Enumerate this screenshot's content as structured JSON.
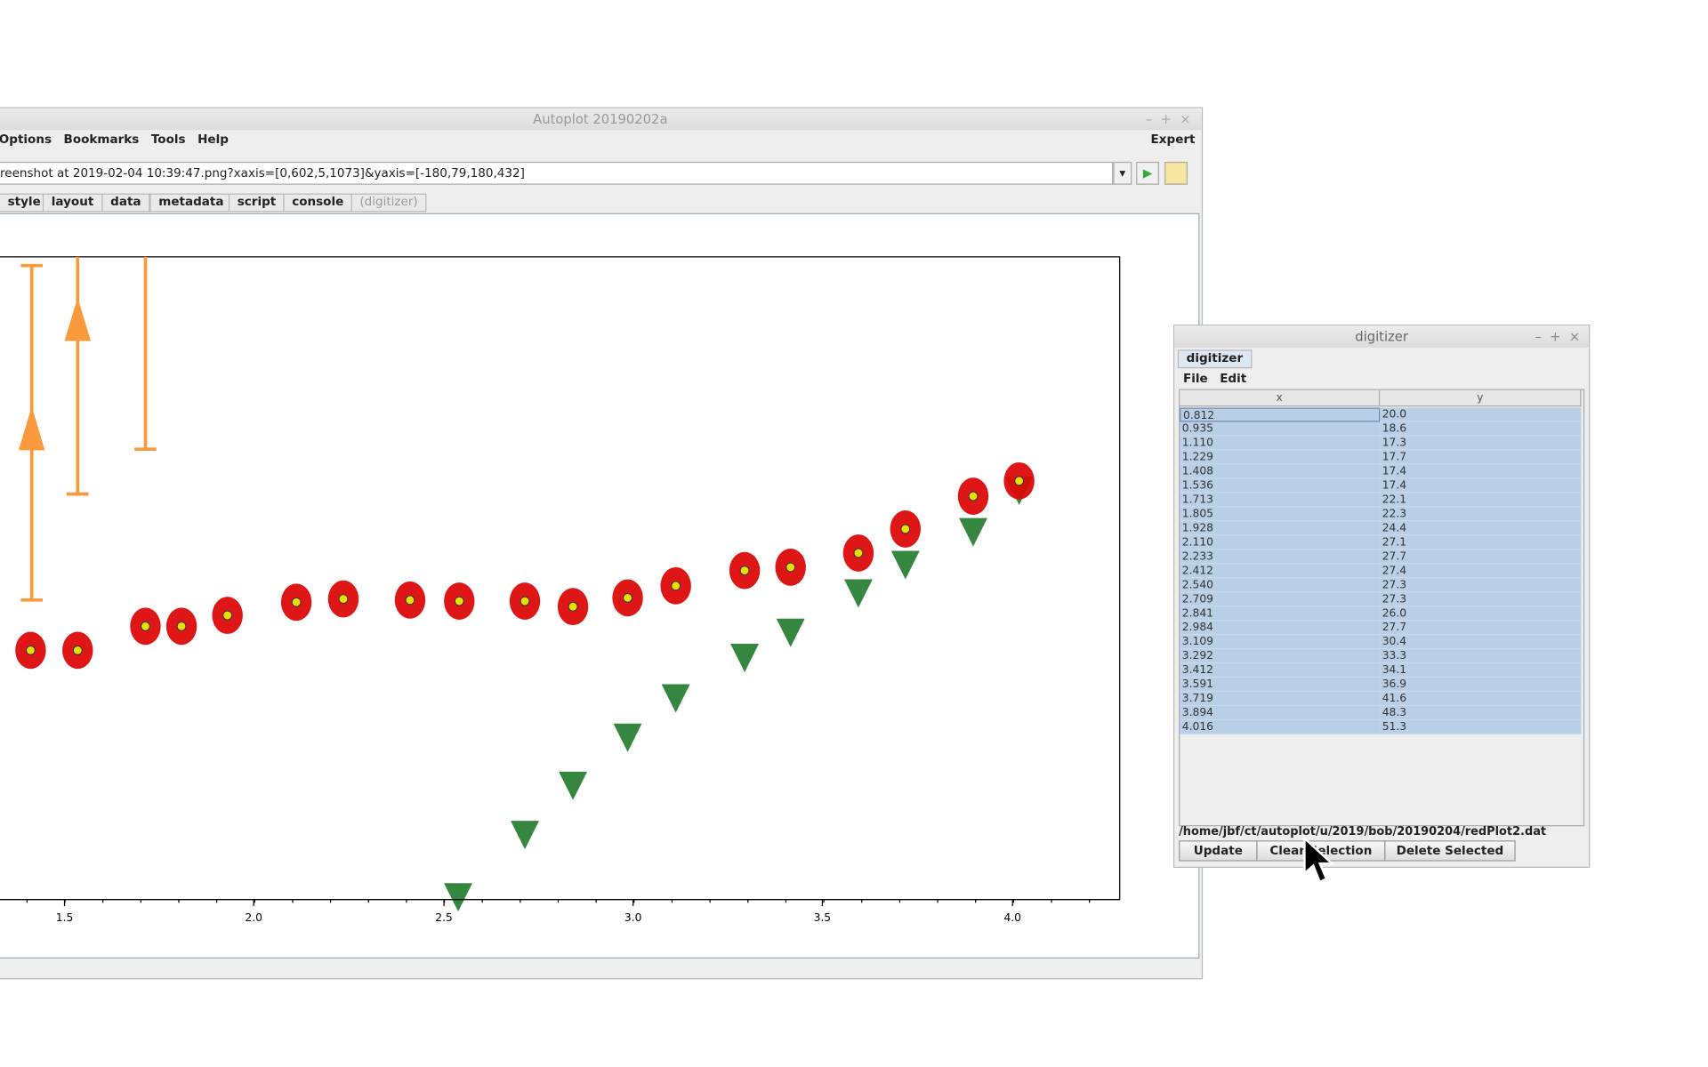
{
  "main_window": {
    "title": "Autoplot 20190202a",
    "menu": [
      "Options",
      "Bookmarks",
      "Tools",
      "Help"
    ],
    "expert": "Expert",
    "uri": "reenshot at 2019-02-04 10:39:47.png?xaxis=[0,602,5,1073]&yaxis=[-180,79,180,432]",
    "tabs": [
      "style",
      "layout",
      "data",
      "metadata",
      "script",
      "console",
      "(digitizer)"
    ],
    "x_ticks": [
      "1.5",
      "2.0",
      "2.5",
      "3.0",
      "3.5",
      "4.0"
    ]
  },
  "digitizer": {
    "title": "digitizer",
    "tab": "digitizer",
    "menu": [
      "File",
      "Edit"
    ],
    "columns": [
      "x",
      "y"
    ],
    "rows": [
      [
        "0.812",
        "20.0"
      ],
      [
        "0.935",
        "18.6"
      ],
      [
        "1.110",
        "17.3"
      ],
      [
        "1.229",
        "17.7"
      ],
      [
        "1.408",
        "17.4"
      ],
      [
        "1.536",
        "17.4"
      ],
      [
        "1.713",
        "22.1"
      ],
      [
        "1.805",
        "22.3"
      ],
      [
        "1.928",
        "24.4"
      ],
      [
        "2.110",
        "27.1"
      ],
      [
        "2.233",
        "27.7"
      ],
      [
        "2.412",
        "27.4"
      ],
      [
        "2.540",
        "27.3"
      ],
      [
        "2.709",
        "27.3"
      ],
      [
        "2.841",
        "26.0"
      ],
      [
        "2.984",
        "27.7"
      ],
      [
        "3.109",
        "30.4"
      ],
      [
        "3.292",
        "33.3"
      ],
      [
        "3.412",
        "34.1"
      ],
      [
        "3.591",
        "36.9"
      ],
      [
        "3.719",
        "41.6"
      ],
      [
        "3.894",
        "48.3"
      ],
      [
        "4.016",
        "51.3"
      ]
    ],
    "file": "/home/jbf/ct/autoplot/u/2019/bob/20190204/redPlot2.dat",
    "buttons": [
      "Update",
      "Clear Selection",
      "Delete Selected"
    ]
  }
}
